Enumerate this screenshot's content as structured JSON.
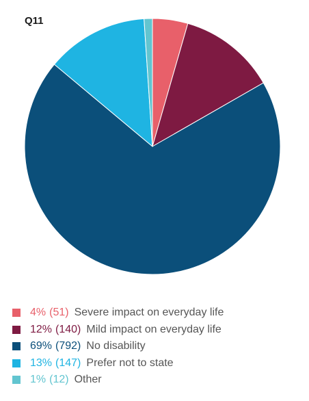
{
  "chart_data": {
    "type": "pie",
    "title": "Q11",
    "categories": [
      "Severe impact on everyday life",
      "Mild impact on everyday life",
      "No disability",
      "Prefer not to state",
      "Other"
    ],
    "values": [
      51,
      140,
      792,
      147,
      12
    ],
    "percent_labels": [
      "4%",
      "12%",
      "69%",
      "13%",
      "1%"
    ],
    "count_labels": [
      "(51)",
      "(140)",
      "(792)",
      "(147)",
      "(12)"
    ],
    "colors": [
      "#e8606a",
      "#7e1a42",
      "#0b4f7a",
      "#1fb4e2",
      "#62c5d0"
    ],
    "start_angle_deg": 0,
    "direction": "clockwise",
    "legend_position": "bottom"
  }
}
